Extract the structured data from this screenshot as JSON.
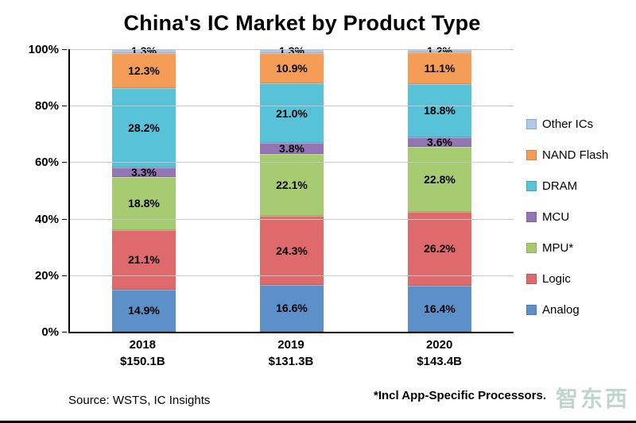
{
  "title": "China's IC Market by Product Type",
  "source": "Source:  WSTS, IC Insights",
  "note": "*Incl App-Specific Processors.",
  "watermark": "智东西",
  "chart_data": {
    "type": "bar",
    "subtype": "stacked-percent",
    "title": "China's IC Market by Product Type",
    "categories": [
      "2018",
      "2019",
      "2020"
    ],
    "category_sublabels": [
      "$150.1B",
      "$131.3B",
      "$143.4B"
    ],
    "series": [
      {
        "name": "Analog",
        "color": "#5d8fc9",
        "values": [
          14.9,
          16.6,
          16.4
        ]
      },
      {
        "name": "Logic",
        "color": "#de6a6b",
        "values": [
          21.1,
          24.3,
          26.2
        ]
      },
      {
        "name": "MPU*",
        "color": "#a7cb70",
        "values": [
          18.8,
          22.1,
          22.8
        ]
      },
      {
        "name": "MCU",
        "color": "#9576b5",
        "values": [
          3.3,
          3.8,
          3.6
        ]
      },
      {
        "name": "DRAM",
        "color": "#57c2d8",
        "values": [
          28.2,
          21.0,
          18.8
        ]
      },
      {
        "name": "NAND Flash",
        "color": "#f59d56",
        "values": [
          12.3,
          10.9,
          11.1
        ]
      },
      {
        "name": "Other ICs",
        "color": "#aec9ea",
        "values": [
          1.3,
          1.3,
          1.2
        ]
      }
    ],
    "xlabel": "",
    "ylabel": "",
    "ylim": [
      0,
      100
    ],
    "yticks": [
      "0%",
      "20%",
      "40%",
      "60%",
      "80%",
      "100%"
    ],
    "grid": true,
    "legend_position": "right",
    "legend_order_top_to_bottom": [
      "Other ICs",
      "NAND Flash",
      "DRAM",
      "MCU",
      "MPU*",
      "Logic",
      "Analog"
    ]
  }
}
